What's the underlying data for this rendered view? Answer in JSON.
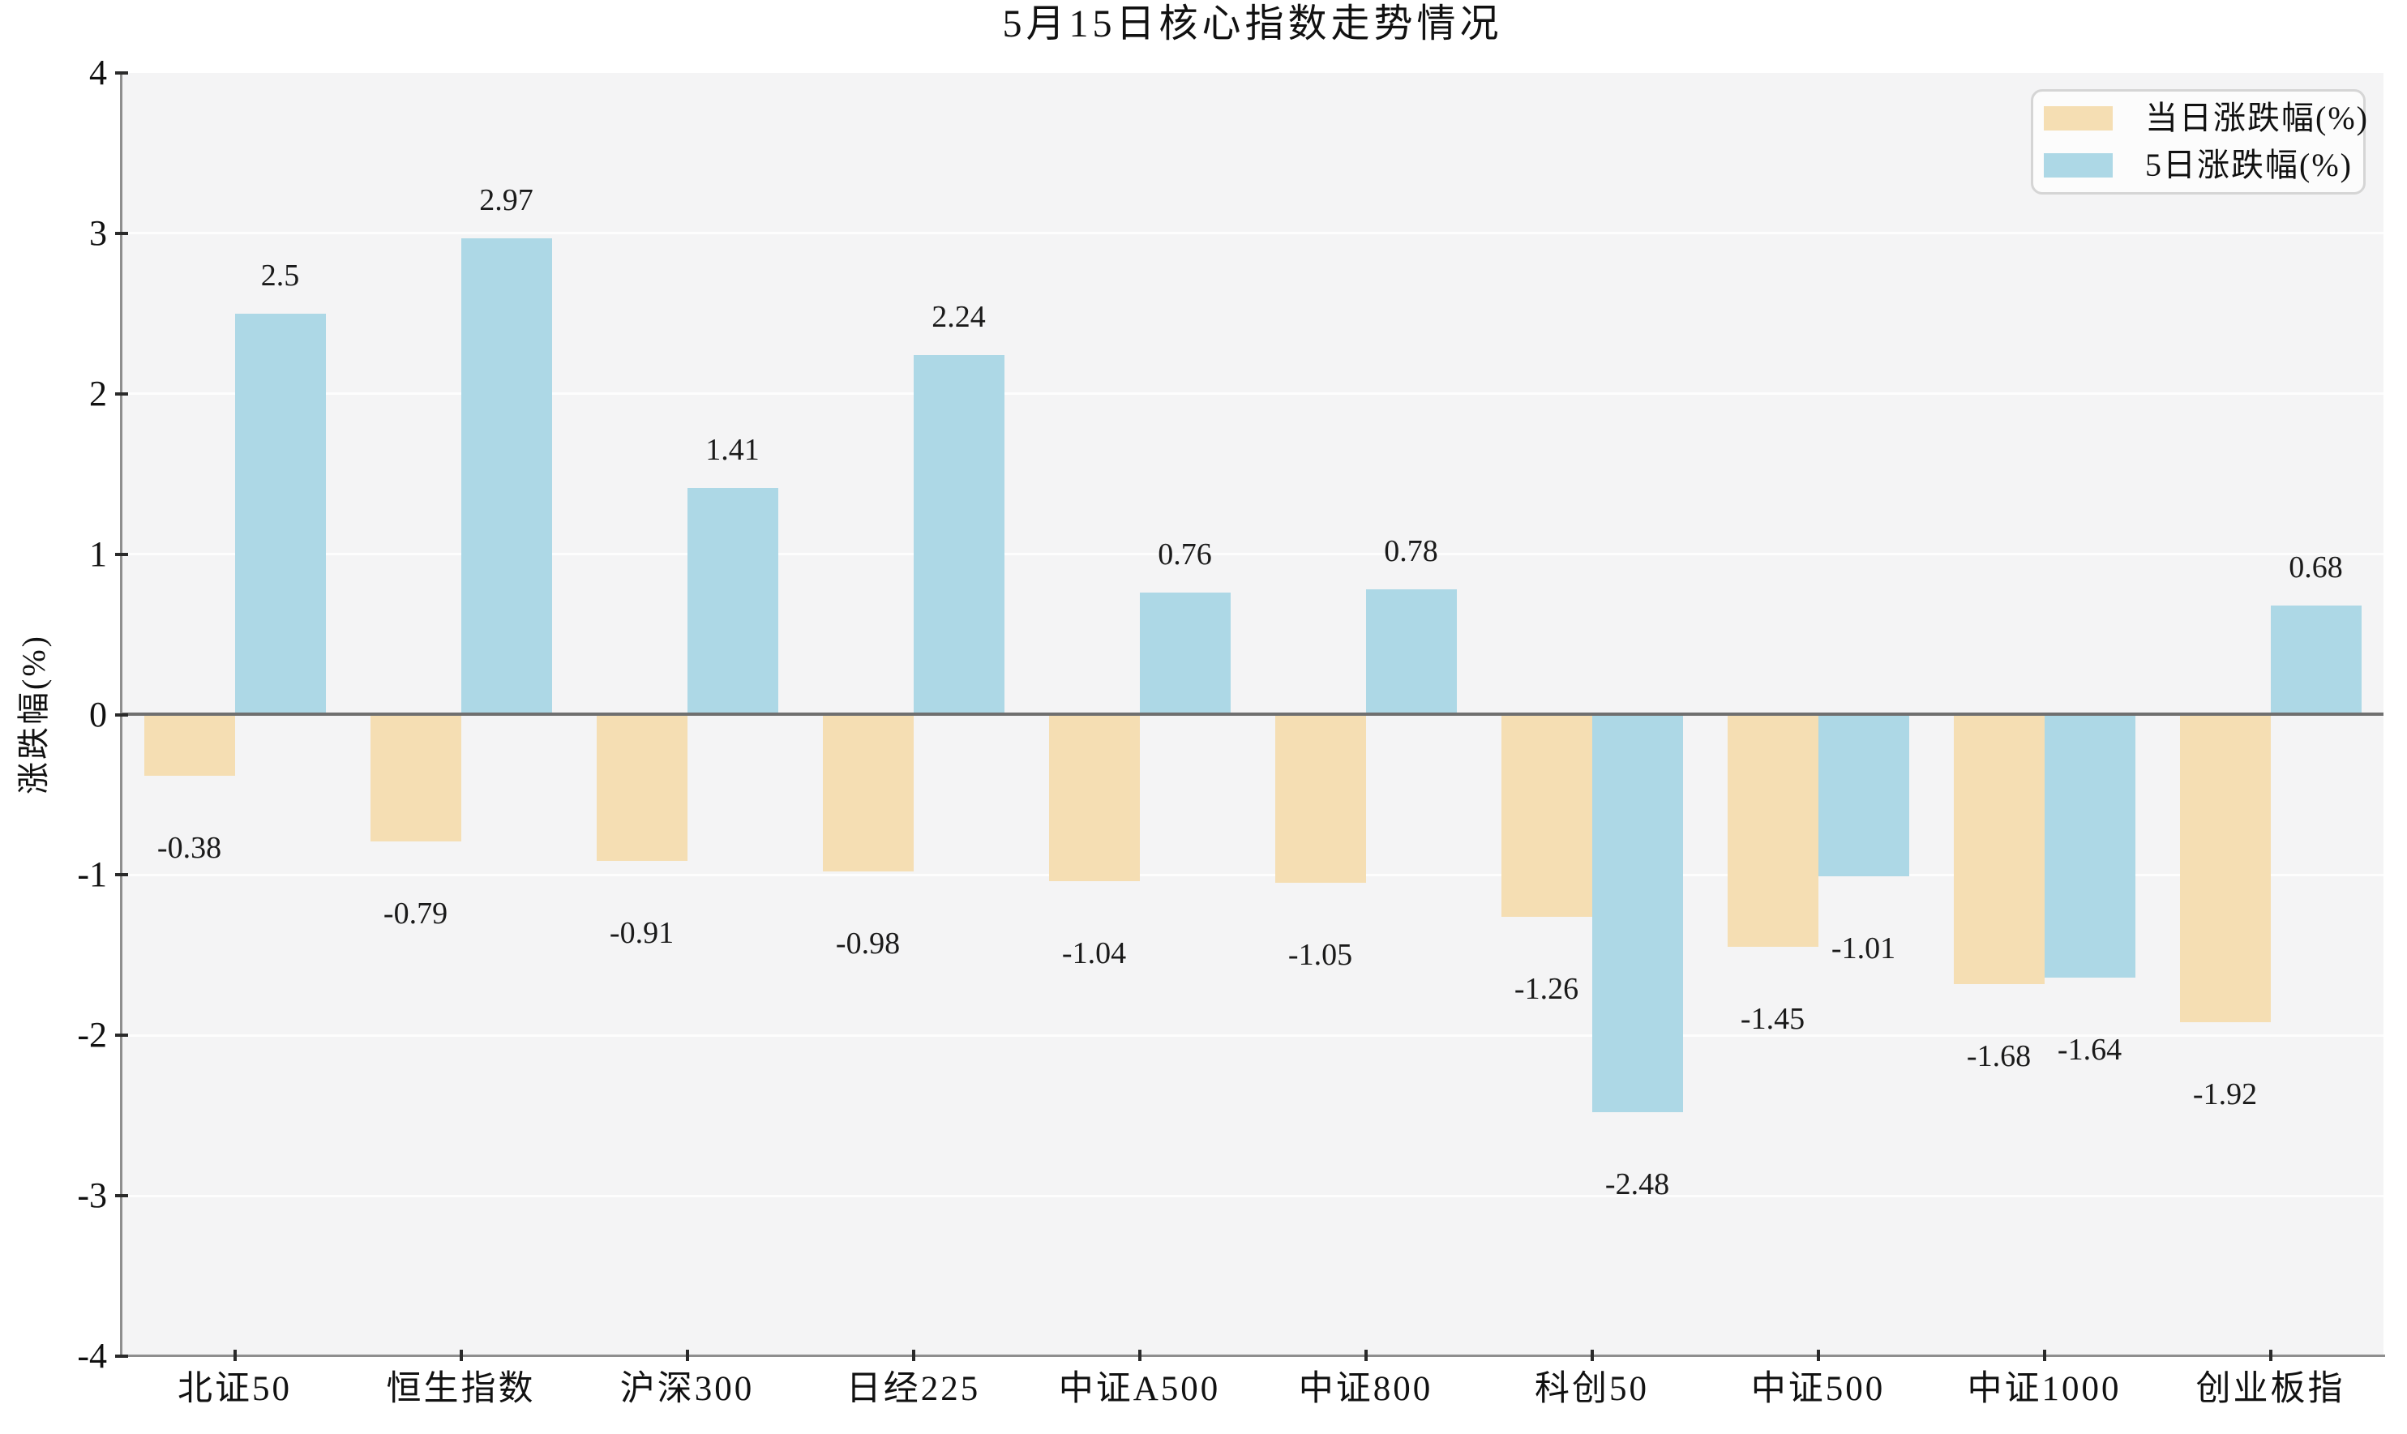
{
  "chart_data": {
    "type": "bar",
    "title": "5月15日核心指数走势情况",
    "xlabel": "",
    "ylabel": "涨跌幅(%)",
    "ylim": [
      -4,
      4
    ],
    "ytick_labels": [
      "4",
      "3",
      "2",
      "1",
      "0",
      "-1",
      "-2",
      "-3",
      "-4"
    ],
    "grid": true,
    "legend_position": "upper right",
    "categories": [
      "北证50",
      "恒生指数",
      "沪深300",
      "日经225",
      "中证A500",
      "中证800",
      "科创50",
      "中证500",
      "中证1000",
      "创业板指"
    ],
    "series": [
      {
        "name": "当日涨跌幅(%)",
        "color": "#f5deb3",
        "values": [
          -0.38,
          -0.79,
          -0.91,
          -0.98,
          -1.04,
          -1.05,
          -1.26,
          -1.45,
          -1.68,
          -1.92
        ]
      },
      {
        "name": "5日涨跌幅(%)",
        "color": "#add8e6",
        "values": [
          2.5,
          2.97,
          1.41,
          2.24,
          0.76,
          0.78,
          -2.48,
          -1.01,
          -1.64,
          0.68
        ]
      }
    ],
    "colors": {
      "plot_background": "#f4f4f5",
      "figure_background": "#ffffff",
      "gridline": "#fdfdfd",
      "zero_line": "#6f6f6f",
      "spine": "#8e8e8e",
      "tick": "#2a2a2a",
      "text": "#111111"
    }
  }
}
